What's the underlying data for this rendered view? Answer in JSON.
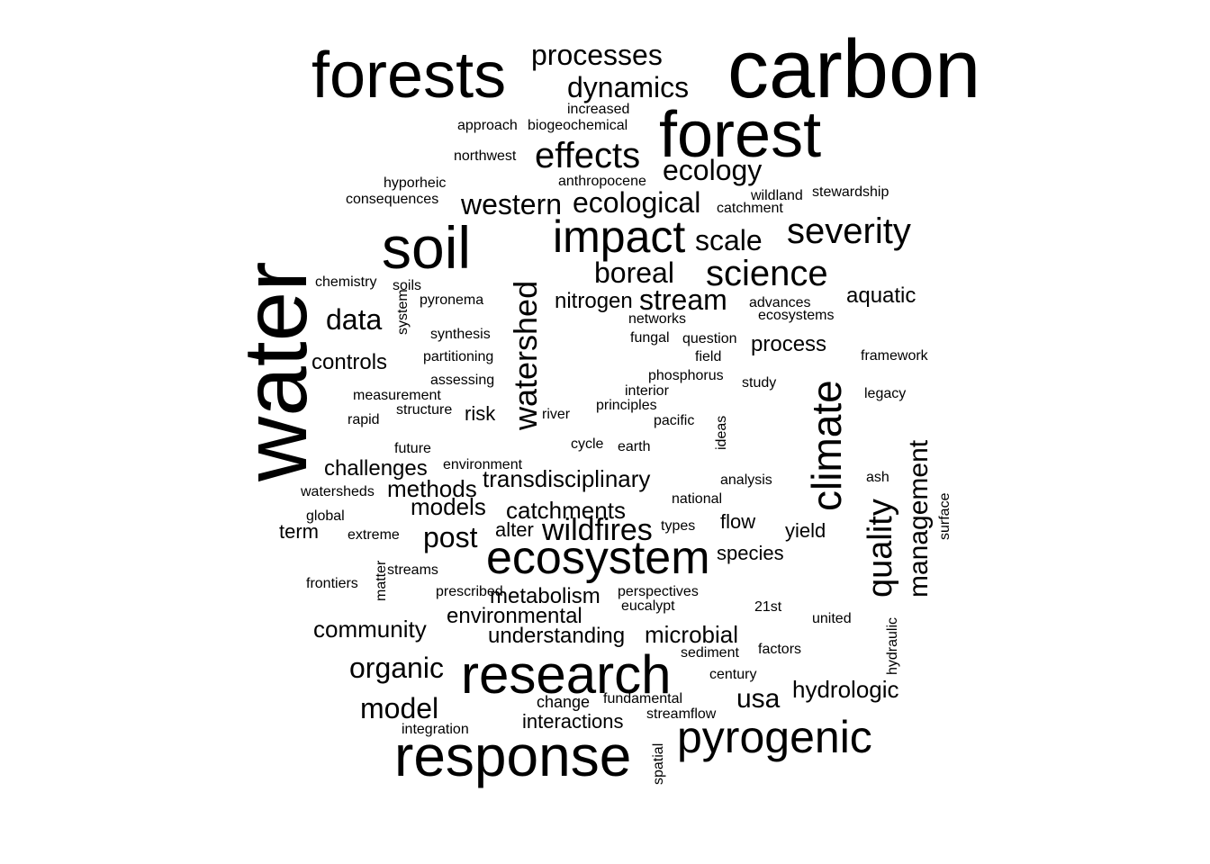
{
  "word_cloud": {
    "words": [
      "water",
      "carbon",
      "forests",
      "forest",
      "response",
      "research",
      "ecosystem",
      "pyrogenic",
      "soil",
      "impact",
      "climate",
      "watershed",
      "severity",
      "science",
      "quality",
      "management",
      "effects",
      "ecology",
      "ecological",
      "western",
      "boreal",
      "stream",
      "scale",
      "processes",
      "dynamics",
      "wildfires",
      "post",
      "transdisciplinary",
      "data",
      "nitrogen",
      "methods",
      "models",
      "catchments",
      "metabolism",
      "organic",
      "model",
      "hydrologic",
      "usa",
      "environmental",
      "understanding",
      "microbial",
      "community",
      "challenges",
      "controls",
      "aquatic",
      "process",
      "interactions",
      "flow",
      "yield",
      "species",
      "fundamental",
      "change",
      "perspectives",
      "eucalypt",
      "streamflow",
      "increased",
      "approach",
      "biogeochemical",
      "northwest",
      "anthropocene",
      "hyporheic",
      "consequences",
      "wildland",
      "stewardship",
      "catchment",
      "chemistry",
      "soils",
      "system",
      "pyronema",
      "synthesis",
      "partitioning",
      "assessing",
      "measurement",
      "structure",
      "risk",
      "rapid",
      "future",
      "environment",
      "term",
      "global",
      "watersheds",
      "extreme",
      "streams",
      "frontiers",
      "matter",
      "prescribed",
      "alter",
      "cycle",
      "earth",
      "analysis",
      "national",
      "types",
      "fungal",
      "networks",
      "question",
      "phosphorus",
      "interior",
      "principles",
      "pacific",
      "advances",
      "ecosystems",
      "framework",
      "legacy",
      "ash",
      "study",
      "factors",
      "sediment",
      "century",
      "integration",
      "united",
      "21st",
      "hydraulic",
      "surface",
      "ideas",
      "river",
      "field",
      "spatial"
    ]
  }
}
